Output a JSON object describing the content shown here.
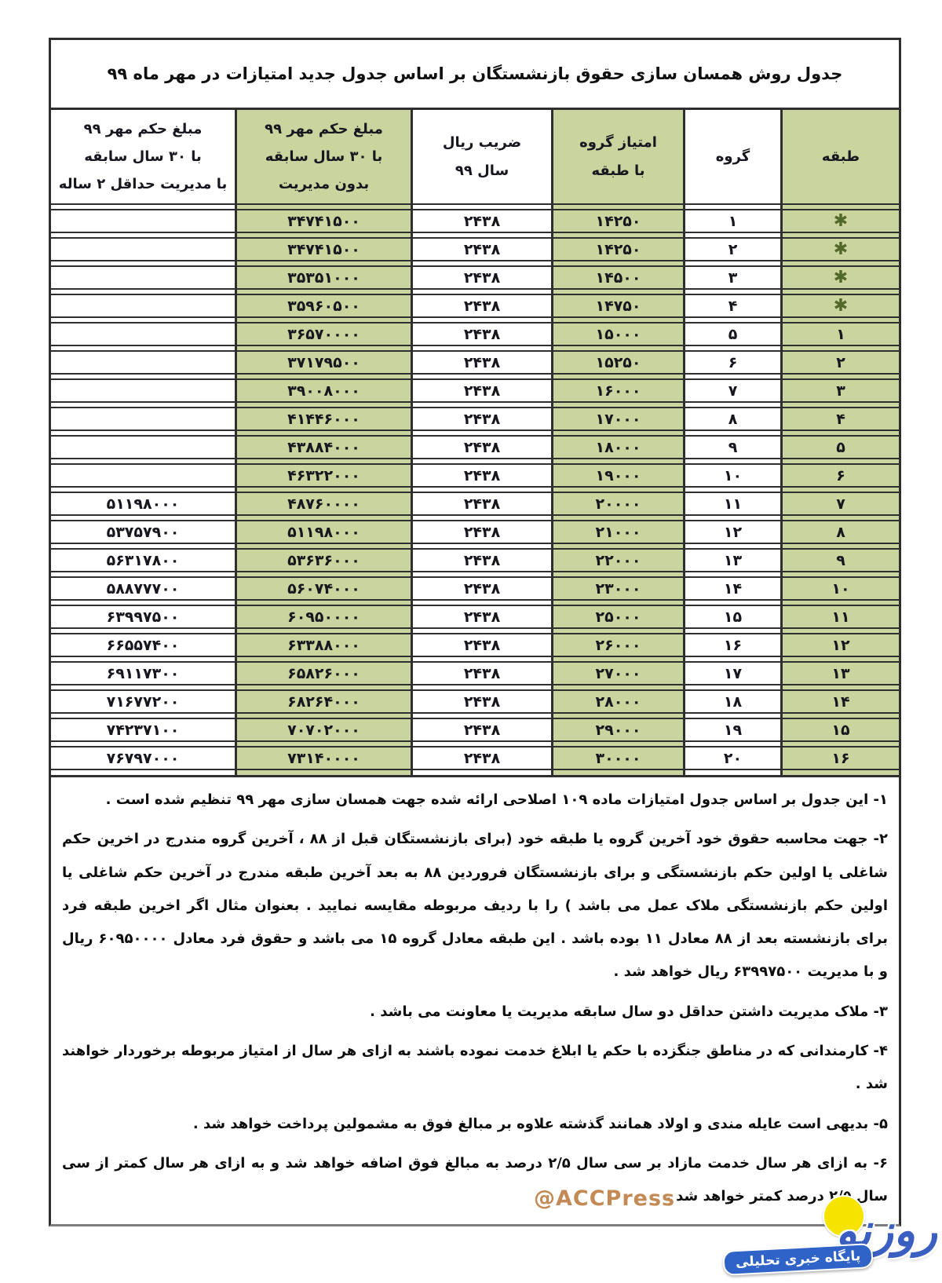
{
  "page": {
    "title": "جدول روش همسان سازی حقوق بازنشستگان بر اساس جدول جدید امتیازات در مهر ماه ۹۹"
  },
  "table": {
    "star_symbol": "✱",
    "columns": [
      {
        "key": "tabagheh",
        "label": "طبقه",
        "green": true
      },
      {
        "key": "gorooh",
        "label": "گروه",
        "green": false
      },
      {
        "key": "emtiaz-gorooh-ba-tabagheh",
        "label": "امتیاز گروه\nبا طبقه",
        "green": true
      },
      {
        "key": "zarib-rial-sal-99",
        "label": "ضریب ریال\nسال ۹۹",
        "green": false
      },
      {
        "key": "mablagh-hokm-mehr-99-bedune-modiriat",
        "label": "مبلغ حکم مهر ۹۹\nبا ۳۰ سال سابقه\nبدون مدیریت",
        "green": true
      },
      {
        "key": "mablagh-hokm-mehr-99-ba-modiriat",
        "label": "مبلغ حکم مهر ۹۹\nبا ۳۰ سال سابقه\nبا مدیریت حداقل ۲ ساله",
        "green": false
      }
    ],
    "rows": [
      [
        "✱",
        "۱",
        "۱۴۲۵۰",
        "۲۴۳۸",
        "۳۴۷۴۱۵۰۰",
        ""
      ],
      [
        "✱",
        "۲",
        "۱۴۲۵۰",
        "۲۴۳۸",
        "۳۴۷۴۱۵۰۰",
        ""
      ],
      [
        "✱",
        "۳",
        "۱۴۵۰۰",
        "۲۴۳۸",
        "۳۵۳۵۱۰۰۰",
        ""
      ],
      [
        "✱",
        "۴",
        "۱۴۷۵۰",
        "۲۴۳۸",
        "۳۵۹۶۰۵۰۰",
        ""
      ],
      [
        "۱",
        "۵",
        "۱۵۰۰۰",
        "۲۴۳۸",
        "۳۶۵۷۰۰۰۰",
        ""
      ],
      [
        "۲",
        "۶",
        "۱۵۲۵۰",
        "۲۴۳۸",
        "۳۷۱۷۹۵۰۰",
        ""
      ],
      [
        "۳",
        "۷",
        "۱۶۰۰۰",
        "۲۴۳۸",
        "۳۹۰۰۸۰۰۰",
        ""
      ],
      [
        "۴",
        "۸",
        "۱۷۰۰۰",
        "۲۴۳۸",
        "۴۱۴۴۶۰۰۰",
        ""
      ],
      [
        "۵",
        "۹",
        "۱۸۰۰۰",
        "۲۴۳۸",
        "۴۳۸۸۴۰۰۰",
        ""
      ],
      [
        "۶",
        "۱۰",
        "۱۹۰۰۰",
        "۲۴۳۸",
        "۴۶۳۲۲۰۰۰",
        ""
      ],
      [
        "۷",
        "۱۱",
        "۲۰۰۰۰",
        "۲۴۳۸",
        "۴۸۷۶۰۰۰۰",
        "۵۱۱۹۸۰۰۰"
      ],
      [
        "۸",
        "۱۲",
        "۲۱۰۰۰",
        "۲۴۳۸",
        "۵۱۱۹۸۰۰۰",
        "۵۳۷۵۷۹۰۰"
      ],
      [
        "۹",
        "۱۳",
        "۲۲۰۰۰",
        "۲۴۳۸",
        "۵۳۶۳۶۰۰۰",
        "۵۶۳۱۷۸۰۰"
      ],
      [
        "۱۰",
        "۱۴",
        "۲۳۰۰۰",
        "۲۴۳۸",
        "۵۶۰۷۴۰۰۰",
        "۵۸۸۷۷۷۰۰"
      ],
      [
        "۱۱",
        "۱۵",
        "۲۵۰۰۰",
        "۲۴۳۸",
        "۶۰۹۵۰۰۰۰",
        "۶۳۹۹۷۵۰۰"
      ],
      [
        "۱۲",
        "۱۶",
        "۲۶۰۰۰",
        "۲۴۳۸",
        "۶۳۳۸۸۰۰۰",
        "۶۶۵۵۷۴۰۰"
      ],
      [
        "۱۳",
        "۱۷",
        "۲۷۰۰۰",
        "۲۴۳۸",
        "۶۵۸۲۶۰۰۰",
        "۶۹۱۱۷۳۰۰"
      ],
      [
        "۱۴",
        "۱۸",
        "۲۸۰۰۰",
        "۲۴۳۸",
        "۶۸۲۶۴۰۰۰",
        "۷۱۶۷۷۲۰۰"
      ],
      [
        "۱۵",
        "۱۹",
        "۲۹۰۰۰",
        "۲۴۳۸",
        "۷۰۷۰۲۰۰۰",
        "۷۴۲۳۷۱۰۰"
      ],
      [
        "۱۶",
        "۲۰",
        "۳۰۰۰۰",
        "۲۴۳۸",
        "۷۳۱۴۰۰۰۰",
        "۷۶۷۹۷۰۰۰"
      ]
    ]
  },
  "notes": [
    "۱- این جدول بر اساس جدول امتیازات ماده ۱۰۹ اصلاحی ارائه شده جهت همسان سازی مهر ۹۹ تنظیم شده است .",
    "۲- جهت محاسبه حقوق خود آخرین گروه یا طبقه خود (برای بازنشستگان قبل از ۸۸ ، آخرین گروه مندرج در اخرین حکم شاغلی یا اولین حکم بازنشستگی و برای بازنشستگان فروردین ۸۸ به بعد آخرین طبقه مندرج در آخرین حکم شاغلی یا اولین حکم بازنشستگی ملاک عمل می باشد ) را با ردیف مربوطه مقایسه نمایید . بعنوان مثال اگر اخرین طبقه فرد برای بازنشسته بعد از ۸۸ معادل ۱۱ بوده باشد . این طبقه معادل گروه ۱۵ می باشد و حقوق فرد معادل ۶۰۹۵۰۰۰۰ ریال و با مدیریت ۶۳۹۹۷۵۰۰ ریال خواهد شد .",
    "۳- ملاک مدیریت داشتن حداقل دو سال سابقه مدیریت یا معاونت می باشد .",
    "۴- کارمندانی که در مناطق جنگزده با حکم یا ابلاغ خدمت نموده باشند به ازای هر سال از امتیاز مربوطه برخوردار خواهند شد .",
    "۵- بدیهی است عایله مندی و اولاد همانند گذشته علاوه بر مبالغ فوق به مشمولین پرداخت خواهد شد .",
    "۶- به ازای هر سال خدمت مازاد بر سی سال ۲/۵ درصد به مبالغ فوق اضافه خواهد شد و به ازای هر سال کمتر از سی سال ۲/۵ درصد کمتر خواهد شد ."
  ],
  "watermark": "@ACCPress",
  "logo": {
    "name": "روزنو",
    "tagline": "پایگاه خبری تحلیلی"
  },
  "colors": {
    "table_green": "#c9d49e",
    "border_dark": "#2f2f2f",
    "watermark_tan": "#c38a55",
    "logo_blue": "#3a5fc0",
    "logo_yellow": "#f6e400",
    "star_green": "#55682b"
  }
}
